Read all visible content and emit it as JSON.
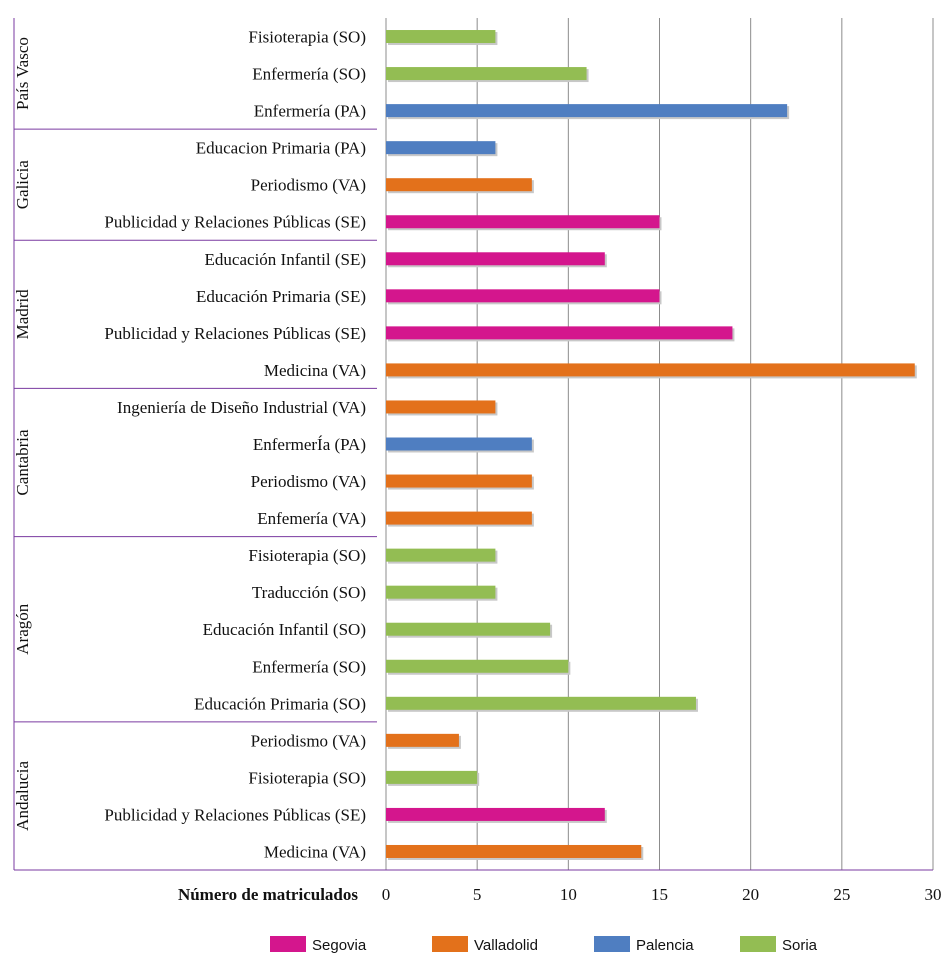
{
  "chart_data": {
    "type": "bar",
    "orientation": "horizontal",
    "xlabel": "Número de matriculados",
    "xlim": [
      0,
      30
    ],
    "xticks": [
      0,
      5,
      10,
      15,
      20,
      25,
      30
    ],
    "grid": "vertical",
    "legend_position": "bottom",
    "series": [
      {
        "name": "Segovia",
        "color": "#d4168d"
      },
      {
        "name": "Valladolid",
        "color": "#e3711b"
      },
      {
        "name": "Palencia",
        "color": "#4f7ec1"
      },
      {
        "name": "Soria",
        "color": "#93bd53"
      }
    ],
    "groups": [
      {
        "name": "País Vasco",
        "bars": [
          {
            "label": "Fisioterapia (SO)",
            "value": 6,
            "series": "Soria"
          },
          {
            "label": "Enfermería (SO)",
            "value": 11,
            "series": "Soria"
          },
          {
            "label": "Enfermería (PA)",
            "value": 22,
            "series": "Palencia"
          }
        ]
      },
      {
        "name": "Galicia",
        "bars": [
          {
            "label": "Educacion Primaria (PA)",
            "value": 6,
            "series": "Palencia"
          },
          {
            "label": "Periodismo (VA)",
            "value": 8,
            "series": "Valladolid"
          },
          {
            "label": "Publicidad y Relaciones Públicas (SE)",
            "value": 15,
            "series": "Segovia"
          }
        ]
      },
      {
        "name": "Madrid",
        "bars": [
          {
            "label": "Educación Infantil (SE)",
            "value": 12,
            "series": "Segovia"
          },
          {
            "label": "Educación Primaria (SE)",
            "value": 15,
            "series": "Segovia"
          },
          {
            "label": "Publicidad y Relaciones Públicas (SE)",
            "value": 19,
            "series": "Segovia"
          },
          {
            "label": "Medicina (VA)",
            "value": 29,
            "series": "Valladolid"
          }
        ]
      },
      {
        "name": "Cantabria",
        "bars": [
          {
            "label": "Ingeniería de Diseño Industrial (VA)",
            "value": 6,
            "series": "Valladolid"
          },
          {
            "label": "EnfermerÍa (PA)",
            "value": 8,
            "series": "Palencia"
          },
          {
            "label": "Periodismo (VA)",
            "value": 8,
            "series": "Valladolid"
          },
          {
            "label": "Enfemería (VA)",
            "value": 8,
            "series": "Valladolid"
          }
        ]
      },
      {
        "name": "Aragón",
        "bars": [
          {
            "label": "Fisioterapia (SO)",
            "value": 6,
            "series": "Soria"
          },
          {
            "label": "Traducción (SO)",
            "value": 6,
            "series": "Soria"
          },
          {
            "label": "Educación Infantil (SO)",
            "value": 9,
            "series": "Soria"
          },
          {
            "label": "Enfermería (SO)",
            "value": 10,
            "series": "Soria"
          },
          {
            "label": "Educación Primaria (SO)",
            "value": 17,
            "series": "Soria"
          }
        ]
      },
      {
        "name": "Andalucia",
        "bars": [
          {
            "label": "Periodismo (VA)",
            "value": 4,
            "series": "Valladolid"
          },
          {
            "label": "Fisioterapia (SO)",
            "value": 5,
            "series": "Soria"
          },
          {
            "label": "Publicidad y Relaciones Públicas (SE)",
            "value": 12,
            "series": "Segovia"
          },
          {
            "label": "Medicina (VA)",
            "value": 14,
            "series": "Valladolid"
          }
        ]
      }
    ]
  }
}
